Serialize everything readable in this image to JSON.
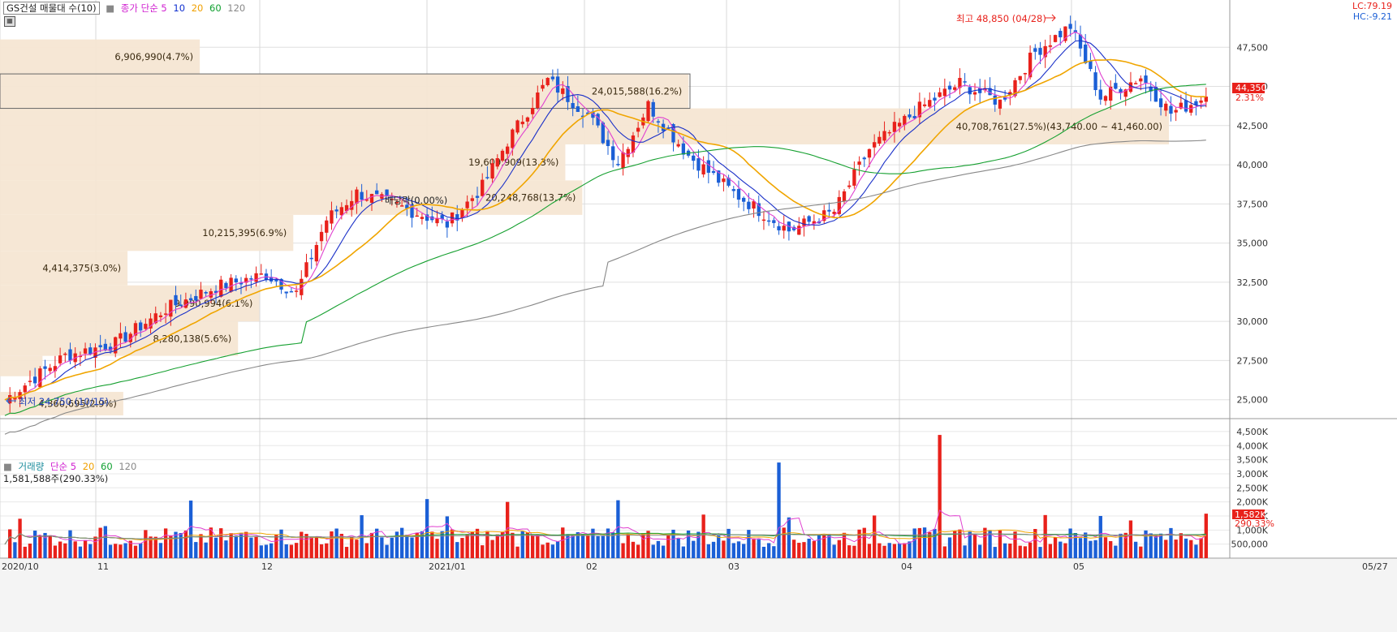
{
  "title_box": "GS건설 매물대 수(10)",
  "price_legend": [
    {
      "text": "종가 단순 5",
      "color": "#d020d0"
    },
    {
      "text": "10",
      "color": "#1030d0"
    },
    {
      "text": "20",
      "color": "#f0a000"
    },
    {
      "text": "60",
      "color": "#10a030"
    },
    {
      "text": "120",
      "color": "#888888"
    }
  ],
  "lc_text": "LC:79.19",
  "hc_text": "HC:-9.21",
  "volume_legend": [
    {
      "text": "거래량",
      "color": "#1c8c9c"
    },
    {
      "text": "단순 5",
      "color": "#d020d0"
    },
    {
      "text": "20",
      "color": "#f0a000"
    },
    {
      "text": "60",
      "color": "#10a030"
    },
    {
      "text": "120",
      "color": "#888888"
    }
  ],
  "volume_info": "1,581,588주(290.33%)",
  "colors": {
    "up": "#e8211b",
    "down": "#1b5fd6",
    "profile": "#f5e6d3",
    "ma5": "#e040d0",
    "ma10": "#1a30c8",
    "ma20": "#f0a500",
    "ma60": "#16a030",
    "ma120": "#888888"
  },
  "chart_data": [
    {
      "type": "candlestick",
      "ylim": [
        24000,
        50000
      ],
      "y_ticks": [
        "25,000",
        "27,500",
        "30,000",
        "32,500",
        "35,000",
        "37,500",
        "40,000",
        "42,500",
        "45,000",
        "47,500"
      ],
      "x_labels": [
        "2020/10",
        "11",
        "12",
        "2021/01",
        "02",
        "03",
        "04",
        "05",
        "05/27"
      ],
      "last_price": "44,350",
      "last_change": "2.31%",
      "high_annotation": "최고 48,850 (04/28)",
      "low_annotation": "최저 24,750 (10/15)",
      "dividend_annotation": "배당락(0.00%)",
      "volume_profile": [
        {
          "from": 24000,
          "to": 25500,
          "label": "4,360,695(2.9%)",
          "pct": 2.9
        },
        {
          "from": 26500,
          "to": 27800,
          "label": "",
          "pct": 1.0
        },
        {
          "from": 27800,
          "to": 30000,
          "label": "8,280,138(5.6%)",
          "pct": 5.6
        },
        {
          "from": 30000,
          "to": 32300,
          "label": "9,090,994(6.1%)",
          "pct": 6.1
        },
        {
          "from": 32300,
          "to": 34500,
          "label": "4,414,375(3.0%)",
          "pct": 3.0
        },
        {
          "from": 34500,
          "to": 36800,
          "label": "10,215,395(6.9%)",
          "pct": 6.9
        },
        {
          "from": 36800,
          "to": 39000,
          "label": "20,248,768(13.7%)",
          "pct": 13.7
        },
        {
          "from": 39000,
          "to": 41300,
          "label": "19,609,909(13.3%)",
          "pct": 13.3
        },
        {
          "from": 41300,
          "to": 43600,
          "label": "40,708,761(27.5%)(43,740.00 ~ 41,460.00)",
          "pct": 27.5
        },
        {
          "from": 43600,
          "to": 45800,
          "label": "24,015,588(16.2%)",
          "pct": 16.2
        },
        {
          "from": 45800,
          "to": 48000,
          "label": "6,906,990(4.7%)",
          "pct": 4.7
        }
      ],
      "series_ma": [
        "ma5",
        "ma10",
        "ma20",
        "ma60",
        "ma120"
      ]
    },
    {
      "type": "bar",
      "ylim": [
        0,
        4700000
      ],
      "y_ticks": [
        "500,000",
        "1,000K",
        "1,500K",
        "2,000K",
        "2,500K",
        "3,000K",
        "3,500K",
        "4,000K",
        "4,500K"
      ],
      "last_volume": "1,582K",
      "last_volume_pct": "290.33%"
    }
  ]
}
